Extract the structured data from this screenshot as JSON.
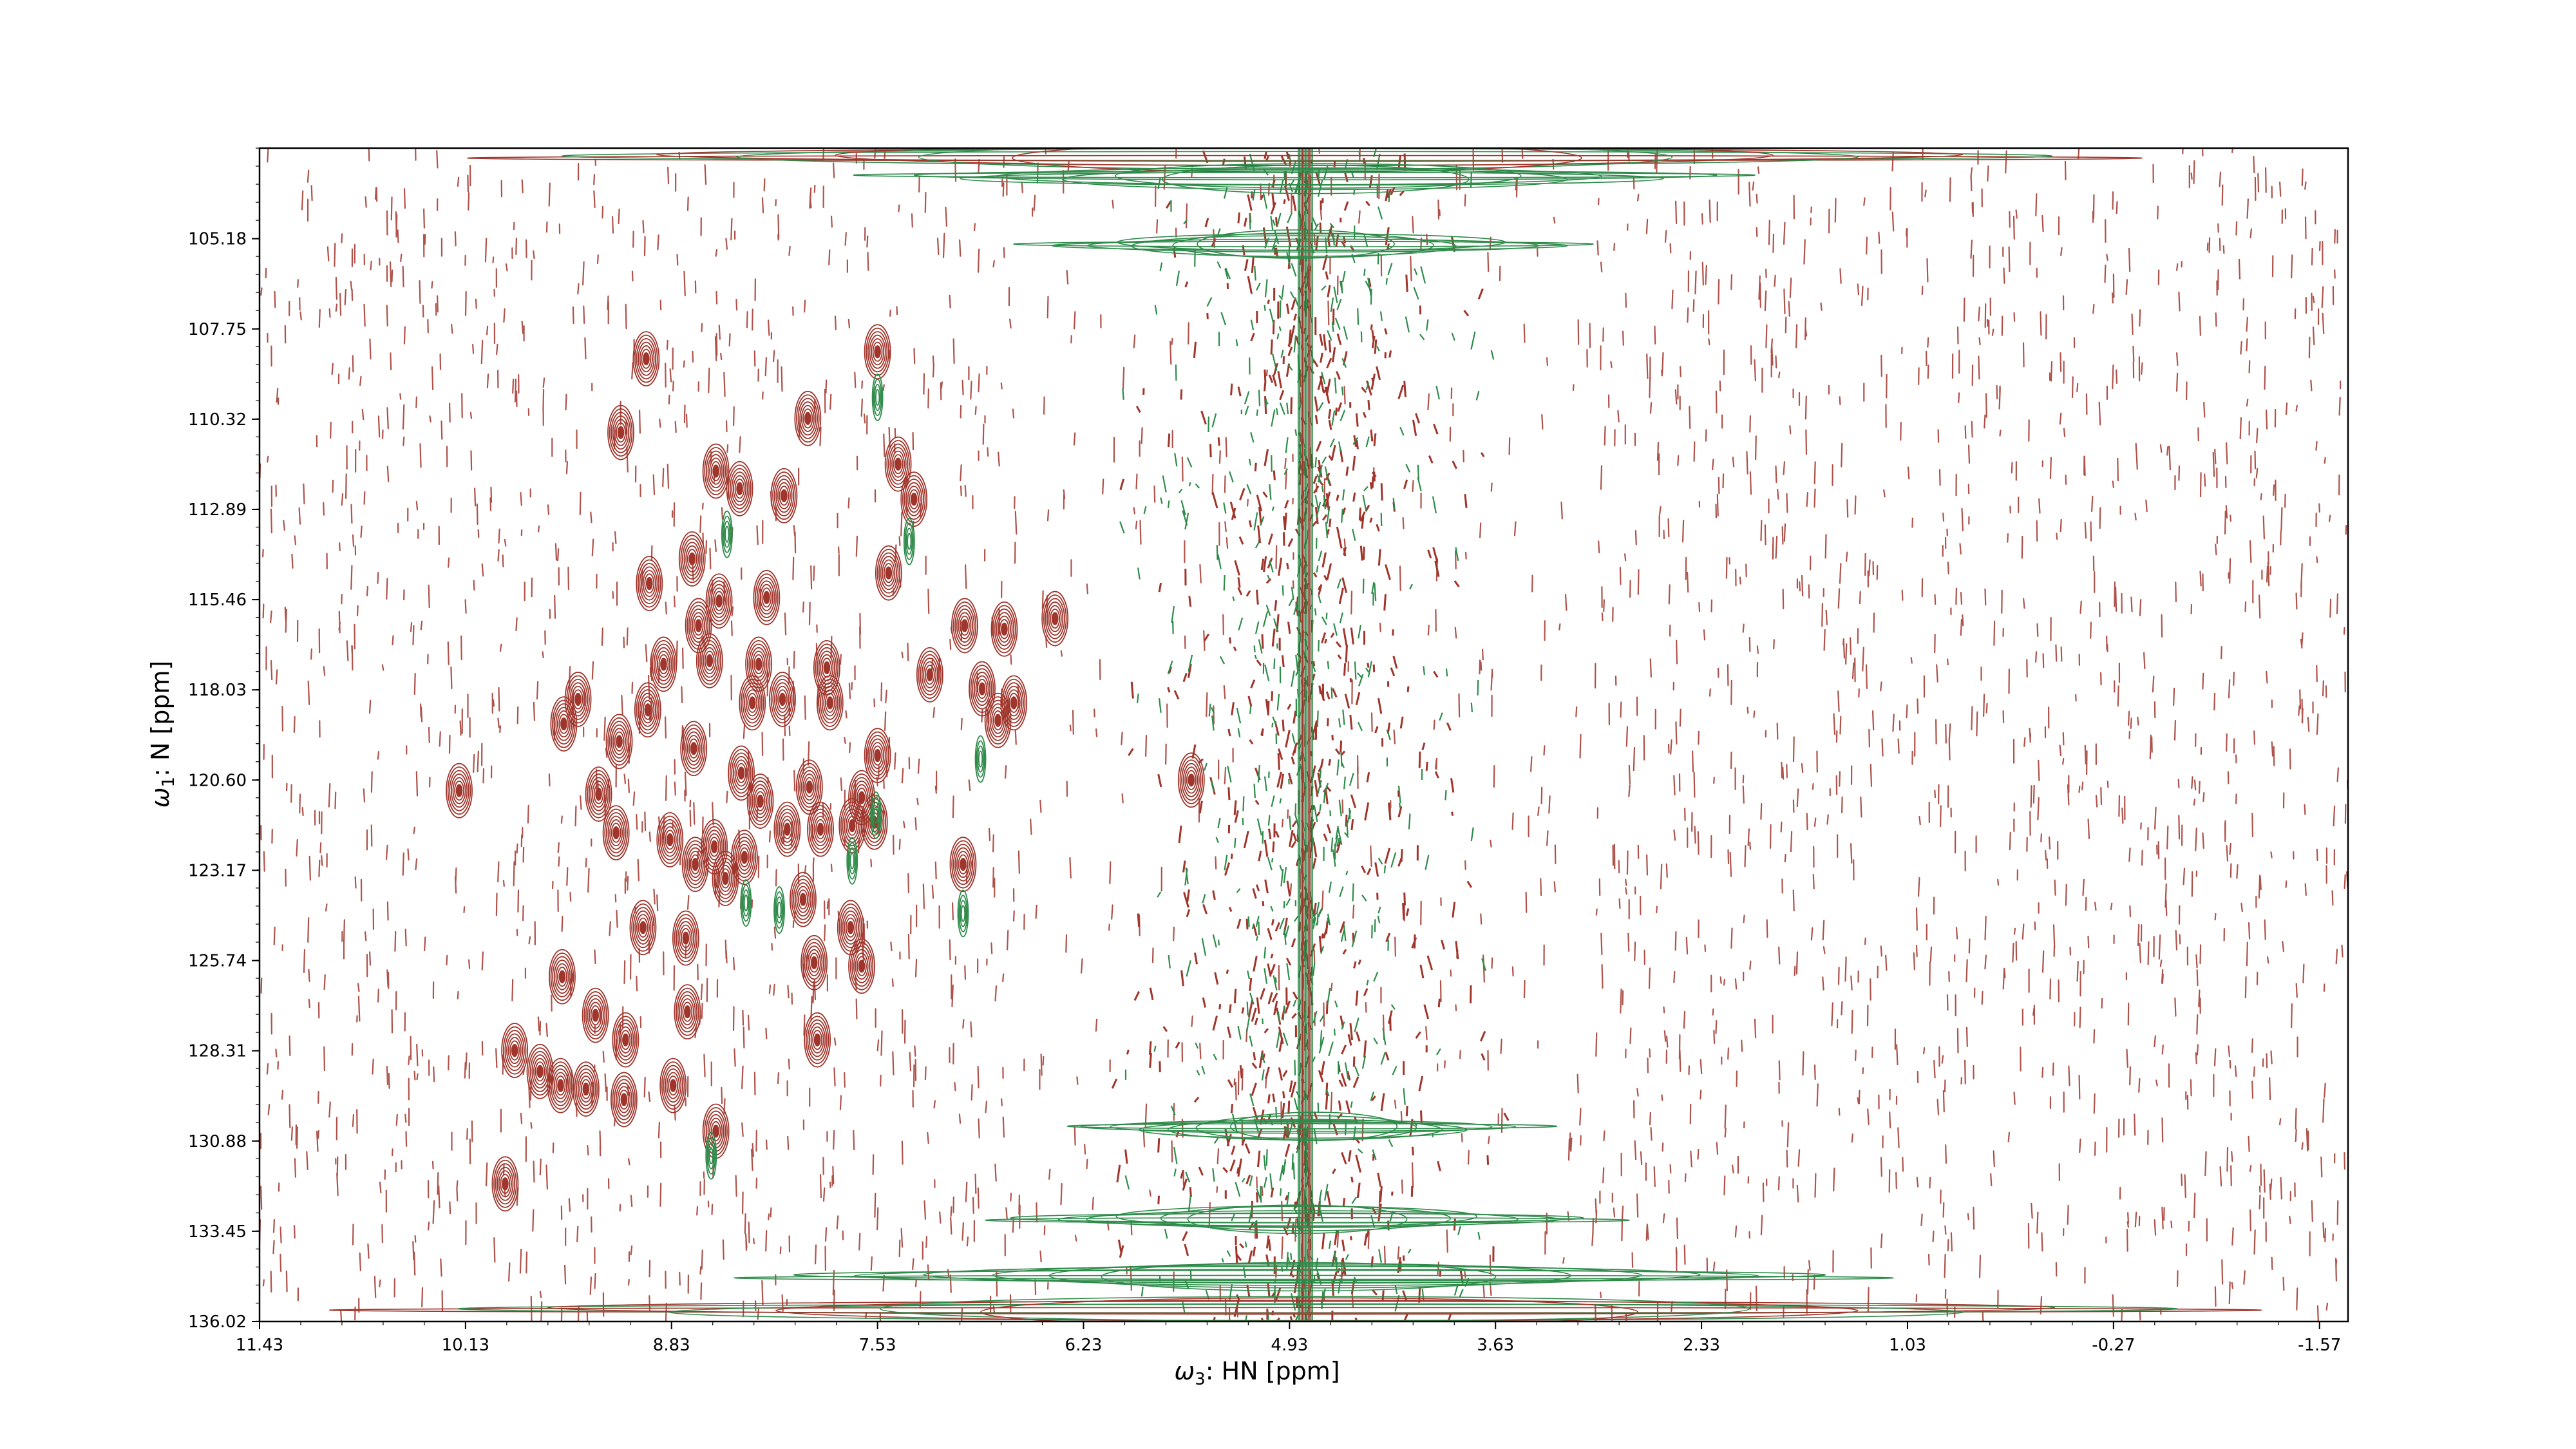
{
  "chart_data": {
    "type": "contour",
    "title": "",
    "xlabel": "ω3: HN [ppm]",
    "ylabel": "ω1: N [ppm]",
    "x_axis_label": {
      "greek": "ω",
      "sub": "3",
      "rest": ": HN [ppm]"
    },
    "y_axis_label": {
      "greek": "ω",
      "sub": "1",
      "rest": ": N [ppm]"
    },
    "xlim": [
      11.43,
      -1.75
    ],
    "ylim": [
      136.02,
      102.6
    ],
    "x_inverted": true,
    "y_inverted": true,
    "x_ticks": [
      "11.43",
      "10.13",
      "8.83",
      "7.53",
      "6.23",
      "4.93",
      "3.63",
      "2.33",
      "1.03",
      "-0.27",
      "-1.57"
    ],
    "y_ticks": [
      "105.18",
      "107.75",
      "110.32",
      "112.89",
      "115.46",
      "118.03",
      "120.60",
      "123.17",
      "125.74",
      "128.31",
      "130.88",
      "133.45",
      "136.02"
    ],
    "grid": false,
    "legend": "none",
    "colors": {
      "positive": "#a0352b",
      "negative": "#2e8b4a"
    },
    "water_line_ppm": 4.83,
    "series": [
      {
        "name": "",
        "sign": "positive",
        "peaks": [
          {
            "x": 8.99,
            "y": 108.6
          },
          {
            "x": 9.15,
            "y": 110.7
          },
          {
            "x": 7.97,
            "y": 110.3
          },
          {
            "x": 7.53,
            "y": 108.4
          },
          {
            "x": 8.55,
            "y": 111.8
          },
          {
            "x": 8.4,
            "y": 112.3
          },
          {
            "x": 8.12,
            "y": 112.5
          },
          {
            "x": 7.4,
            "y": 111.6
          },
          {
            "x": 7.3,
            "y": 112.6
          },
          {
            "x": 8.7,
            "y": 114.3
          },
          {
            "x": 8.97,
            "y": 115.0
          },
          {
            "x": 8.53,
            "y": 115.5
          },
          {
            "x": 8.66,
            "y": 116.2
          },
          {
            "x": 8.23,
            "y": 115.4
          },
          {
            "x": 7.46,
            "y": 114.7
          },
          {
            "x": 6.98,
            "y": 116.2
          },
          {
            "x": 6.73,
            "y": 116.3
          },
          {
            "x": 8.88,
            "y": 117.3
          },
          {
            "x": 8.59,
            "y": 117.2
          },
          {
            "x": 8.28,
            "y": 117.3
          },
          {
            "x": 7.85,
            "y": 117.4
          },
          {
            "x": 7.2,
            "y": 117.6
          },
          {
            "x": 6.87,
            "y": 118.0
          },
          {
            "x": 6.67,
            "y": 118.4
          },
          {
            "x": 9.42,
            "y": 118.3
          },
          {
            "x": 8.98,
            "y": 118.6
          },
          {
            "x": 8.32,
            "y": 118.4
          },
          {
            "x": 8.13,
            "y": 118.3
          },
          {
            "x": 7.83,
            "y": 118.4
          },
          {
            "x": 6.77,
            "y": 118.9
          },
          {
            "x": 9.51,
            "y": 119.0
          },
          {
            "x": 9.16,
            "y": 119.5
          },
          {
            "x": 8.69,
            "y": 119.7
          },
          {
            "x": 8.39,
            "y": 120.4
          },
          {
            "x": 7.53,
            "y": 119.9
          },
          {
            "x": 9.29,
            "y": 121.0
          },
          {
            "x": 8.27,
            "y": 121.2
          },
          {
            "x": 7.96,
            "y": 120.8
          },
          {
            "x": 7.63,
            "y": 121.1
          },
          {
            "x": 10.17,
            "y": 120.9
          },
          {
            "x": 9.18,
            "y": 122.1
          },
          {
            "x": 8.84,
            "y": 122.3
          },
          {
            "x": 8.56,
            "y": 122.5
          },
          {
            "x": 8.37,
            "y": 122.8
          },
          {
            "x": 8.1,
            "y": 122.0
          },
          {
            "x": 7.89,
            "y": 122.0
          },
          {
            "x": 7.69,
            "y": 121.9
          },
          {
            "x": 7.55,
            "y": 121.8
          },
          {
            "x": 8.68,
            "y": 123.0
          },
          {
            "x": 8.49,
            "y": 123.4
          },
          {
            "x": 6.99,
            "y": 123.0
          },
          {
            "x": 5.55,
            "y": 120.6
          },
          {
            "x": 8.0,
            "y": 124.0
          },
          {
            "x": 9.01,
            "y": 124.8
          },
          {
            "x": 8.74,
            "y": 125.1
          },
          {
            "x": 7.7,
            "y": 124.8
          },
          {
            "x": 7.93,
            "y": 125.8
          },
          {
            "x": 7.63,
            "y": 125.9
          },
          {
            "x": 9.52,
            "y": 126.2
          },
          {
            "x": 8.73,
            "y": 127.2
          },
          {
            "x": 9.31,
            "y": 127.3
          },
          {
            "x": 9.12,
            "y": 128.0
          },
          {
            "x": 7.91,
            "y": 128.0
          },
          {
            "x": 9.82,
            "y": 128.3
          },
          {
            "x": 9.66,
            "y": 128.9
          },
          {
            "x": 9.53,
            "y": 129.3
          },
          {
            "x": 9.37,
            "y": 129.4
          },
          {
            "x": 9.13,
            "y": 129.7
          },
          {
            "x": 8.82,
            "y": 129.3
          },
          {
            "x": 8.55,
            "y": 130.6
          },
          {
            "x": 9.88,
            "y": 132.1
          },
          {
            "x": 6.41,
            "y": 116.0
          }
        ]
      },
      {
        "name": "",
        "sign": "negative",
        "peaks": [
          {
            "x": 7.53,
            "y": 109.7
          },
          {
            "x": 7.33,
            "y": 113.8
          },
          {
            "x": 8.48,
            "y": 113.6
          },
          {
            "x": 6.88,
            "y": 120.0
          },
          {
            "x": 7.69,
            "y": 122.9
          },
          {
            "x": 8.15,
            "y": 124.3
          },
          {
            "x": 8.36,
            "y": 124.1
          },
          {
            "x": 6.99,
            "y": 124.4
          },
          {
            "x": 8.58,
            "y": 131.3
          },
          {
            "x": 7.54,
            "y": 121.6
          }
        ]
      }
    ]
  }
}
